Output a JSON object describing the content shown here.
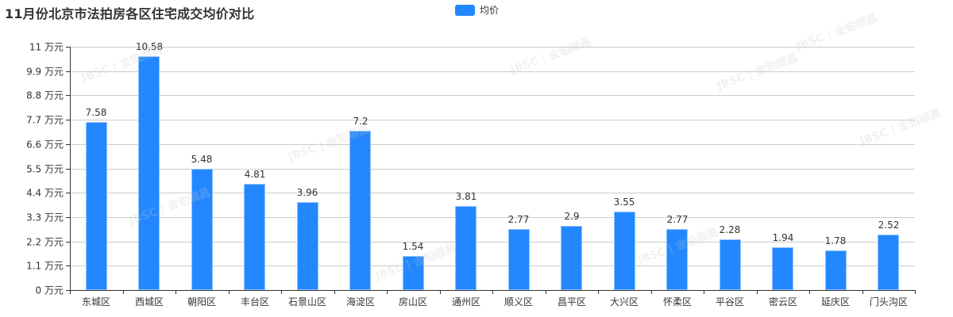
{
  "title": "11月份北京市法拍房各区住宅成交均价对比",
  "legend": {
    "label": "均价",
    "color": "#2388ff"
  },
  "y_axis": {
    "unit": "万元",
    "ticks": [
      "0 万元",
      "1.1 万元",
      "2.2 万元",
      "3.3 万元",
      "4.4 万元",
      "5.5 万元",
      "6.6 万元",
      "7.7 万元",
      "8.8 万元",
      "9.9 万元",
      "11 万元"
    ]
  },
  "watermark": "JBSC | 金铂顺昌",
  "chart_data": {
    "type": "bar",
    "title": "11月份北京市法拍房各区住宅成交均价对比",
    "xlabel": "",
    "ylabel": "万元",
    "ylim": [
      0,
      11
    ],
    "y_ticks": [
      0,
      1.1,
      2.2,
      3.3,
      4.4,
      5.5,
      6.6,
      7.7,
      8.8,
      9.9,
      11
    ],
    "grid": true,
    "legend_position": "top-center",
    "categories": [
      "东城区",
      "西城区",
      "朝阳区",
      "丰台区",
      "石景山区",
      "海淀区",
      "房山区",
      "通州区",
      "顺义区",
      "昌平区",
      "大兴区",
      "怀柔区",
      "平谷区",
      "密云区",
      "延庆区",
      "门头沟区"
    ],
    "series": [
      {
        "name": "均价",
        "color": "#2388ff",
        "values": [
          7.58,
          10.58,
          5.48,
          4.81,
          3.96,
          7.2,
          1.54,
          3.81,
          2.77,
          2.9,
          3.55,
          2.77,
          2.28,
          1.94,
          1.78,
          2.52
        ],
        "labels": [
          "7.58",
          "10.58",
          "5.48",
          "4.81",
          "3.96",
          "7.2",
          "1.54",
          "3.81",
          "2.77",
          "2.9",
          "3.55",
          "2.77",
          "2.28",
          "1.94",
          "1.78",
          "2.52"
        ]
      }
    ]
  }
}
